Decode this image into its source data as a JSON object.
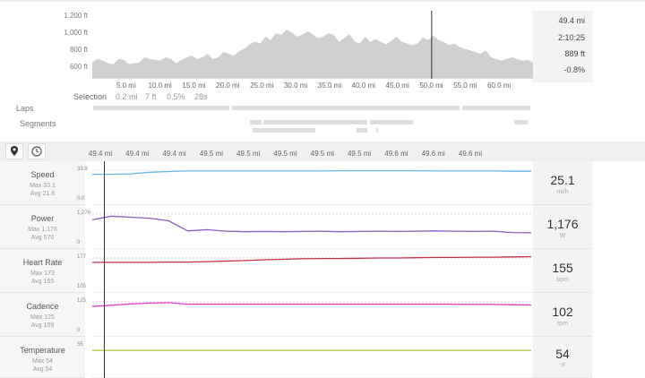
{
  "elevation": {
    "y_ticks": [
      "1,200 ft",
      "1,000 ft",
      "800 ft",
      "600 ft"
    ],
    "x_ticks": [
      "5.0 mi",
      "10.0 mi",
      "15.0 mi",
      "20.0 mi",
      "25.0 mi",
      "30.0 mi",
      "35.0 mi",
      "40.0 mi",
      "45.0 mi",
      "50.0 mi",
      "55.0 mi",
      "60.0 mi"
    ],
    "profile_ft": [
      660,
      700,
      680,
      650,
      640,
      700,
      690,
      640,
      650,
      660,
      720,
      700,
      690,
      680,
      720,
      700,
      650,
      690,
      720,
      740,
      700,
      720,
      760,
      700,
      720,
      780,
      760,
      740,
      790,
      820,
      870,
      900,
      880,
      960,
      920,
      1000,
      980,
      1040,
      1010,
      960,
      980,
      1020,
      990,
      940,
      960,
      1000,
      980,
      900,
      940,
      990,
      900,
      880,
      960,
      900,
      930,
      900,
      870,
      910,
      960,
      900,
      880,
      860,
      880,
      950,
      920,
      970,
      920,
      900,
      860,
      880,
      840,
      820,
      800,
      780,
      760,
      800,
      720,
      700,
      680,
      700,
      720,
      700,
      680,
      690,
      660
    ],
    "cursor_fraction": 0.77
  },
  "stats": {
    "distance": "49.4 mi",
    "time": "2:10:25",
    "elevation": "889 ft",
    "grade": "-0.8%"
  },
  "selection": {
    "label": "Selection",
    "distance": "0.2 mi",
    "elev": "7 ft",
    "grade": "0.5%",
    "time": "28s"
  },
  "rows": {
    "laps": "Laps",
    "segments": "Segments"
  },
  "toolbar": {
    "location_icon": "map-pin-icon",
    "time_icon": "clock-icon"
  },
  "detail_x_ticks": [
    "49.4 mi",
    "49.4 mi",
    "49.4 mi",
    "49.5 mi",
    "49.5 mi",
    "49.5 mi",
    "49.5 mi",
    "49.5 mi",
    "49.6 mi",
    "49.6 mi",
    "49.6 mi"
  ],
  "metrics": [
    {
      "name": "Speed",
      "max": "Max 33.1",
      "avg": "Avg 21.6",
      "value": "25.1",
      "unit": "mi/h",
      "color": "#6ab8e6",
      "top_label": "33.9",
      "bottom_label": "0.0",
      "points": [
        0.84,
        0.84,
        0.86,
        0.92,
        0.95,
        0.97,
        0.97,
        0.97,
        0.97,
        0.97,
        0.97,
        0.97,
        0.97,
        0.98,
        0.98,
        0.98,
        0.98,
        0.98,
        0.97,
        0.97,
        0.97,
        0.97,
        0.96,
        0.96
      ]
    },
    {
      "name": "Power",
      "max": "Max 1,176",
      "avg": "Avg 570",
      "value": "1,176",
      "unit": "W",
      "color": "#8a5cc4",
      "top_label": "1,276",
      "bottom_label": "0",
      "points": [
        0.78,
        0.92,
        0.88,
        0.84,
        0.74,
        0.35,
        0.4,
        0.34,
        0.32,
        0.33,
        0.32,
        0.33,
        0.34,
        0.32,
        0.33,
        0.34,
        0.33,
        0.34,
        0.35,
        0.34,
        0.33,
        0.34,
        0.29,
        0.28
      ]
    },
    {
      "name": "Heart Rate",
      "max": "Max 173",
      "avg": "Avg 165",
      "value": "155",
      "unit": "bpm",
      "color": "#c2334a",
      "top_label": "177",
      "bottom_label": "105",
      "points": [
        0.83,
        0.83,
        0.83,
        0.83,
        0.84,
        0.84,
        0.86,
        0.88,
        0.9,
        0.93,
        0.95,
        0.97,
        0.98,
        0.98,
        0.99,
        1.0,
        1.0,
        1.01,
        1.02,
        1.02,
        1.03,
        1.03,
        1.04,
        1.05
      ]
    },
    {
      "name": "Cadence",
      "max": "Max 125",
      "avg": "Avg 109",
      "value": "102",
      "unit": "rpm",
      "color": "#e040d0",
      "top_label": "125",
      "bottom_label": "0",
      "points": [
        0.82,
        0.87,
        0.92,
        0.95,
        0.97,
        0.91,
        0.91,
        0.91,
        0.91,
        0.91,
        0.91,
        0.91,
        0.91,
        0.91,
        0.91,
        0.91,
        0.91,
        0.91,
        0.91,
        0.91,
        0.9,
        0.9,
        0.89,
        0.88
      ]
    },
    {
      "name": "Temperature",
      "max": "Max 54",
      "avg": "Avg 54",
      "value": "54",
      "unit": "°F",
      "color": "#b5c94a",
      "top_label": "55",
      "bottom_label": "",
      "points": [
        0.8,
        0.8,
        0.8,
        0.8,
        0.8,
        0.8,
        0.8,
        0.8,
        0.8,
        0.8,
        0.8,
        0.8,
        0.8,
        0.8,
        0.8,
        0.8,
        0.8,
        0.8,
        0.8,
        0.8,
        0.8,
        0.8,
        0.8,
        0.8
      ]
    }
  ]
}
